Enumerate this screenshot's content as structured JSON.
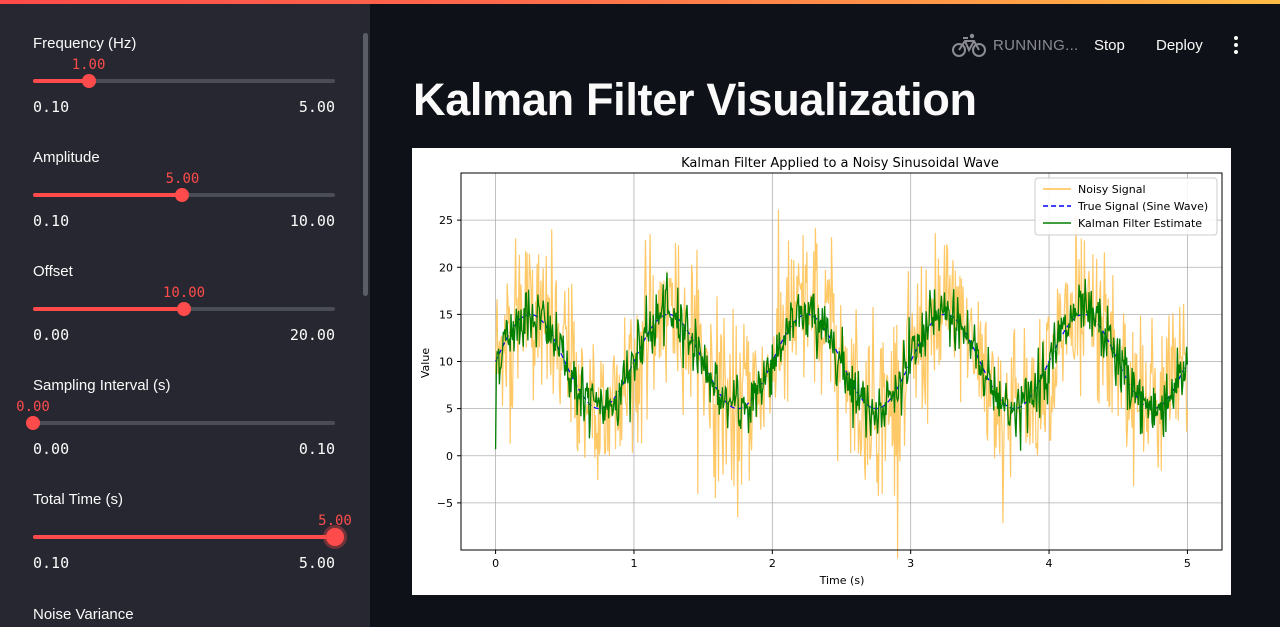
{
  "header": {
    "status_text": "RUNNING...",
    "stop_label": "Stop",
    "deploy_label": "Deploy"
  },
  "page": {
    "title": "Kalman Filter Visualization"
  },
  "sidebar": {
    "sliders": [
      {
        "label": "Frequency (Hz)",
        "value": "1.00",
        "min": "0.10",
        "max": "5.00",
        "fraction": 0.184
      },
      {
        "label": "Amplitude",
        "value": "5.00",
        "min": "0.10",
        "max": "10.00",
        "fraction": 0.495
      },
      {
        "label": "Offset",
        "value": "10.00",
        "min": "0.00",
        "max": "20.00",
        "fraction": 0.5
      },
      {
        "label": "Sampling Interval (s)",
        "value": "0.00",
        "min": "0.00",
        "max": "0.10",
        "fraction": 0.0
      },
      {
        "label": "Total Time (s)",
        "value": "5.00",
        "min": "0.10",
        "max": "5.00",
        "fraction": 1.0
      }
    ],
    "bottom_label": "Noise Variance"
  },
  "colors": {
    "accent": "#ff4b4b",
    "noisy": "#ffc04d",
    "true_signal": "#0000ff",
    "kalman": "#008000"
  },
  "chart_data": {
    "type": "line",
    "title": "Kalman Filter Applied to a Noisy Sinusoidal Wave",
    "xlabel": "Time (s)",
    "ylabel": "Value",
    "xlim": [
      -0.25,
      5.25
    ],
    "ylim": [
      -10,
      30
    ],
    "xticks": [
      0,
      1,
      2,
      3,
      4,
      5
    ],
    "yticks": [
      -5,
      0,
      5,
      10,
      15,
      20,
      25
    ],
    "grid": true,
    "legend_position": "top-right",
    "series": [
      {
        "name": "Noisy Signal",
        "style": "solid",
        "color": "#ffc04d",
        "model": {
          "amplitude": 5,
          "frequency": 1,
          "offset": 10,
          "noise_std": 4.5
        },
        "x_range": [
          0,
          5
        ]
      },
      {
        "name": "True Signal (Sine Wave)",
        "style": "dashed",
        "color": "#0000ff",
        "model": {
          "amplitude": 5,
          "frequency": 1,
          "offset": 10
        },
        "x_range": [
          0,
          5
        ]
      },
      {
        "name": "Kalman Filter Estimate",
        "style": "solid",
        "color": "#008000",
        "model": {
          "amplitude": 5,
          "frequency": 1,
          "offset": 10,
          "noise_std": 1.6,
          "start_value": 0.7
        },
        "x_range": [
          0,
          5
        ]
      }
    ]
  }
}
